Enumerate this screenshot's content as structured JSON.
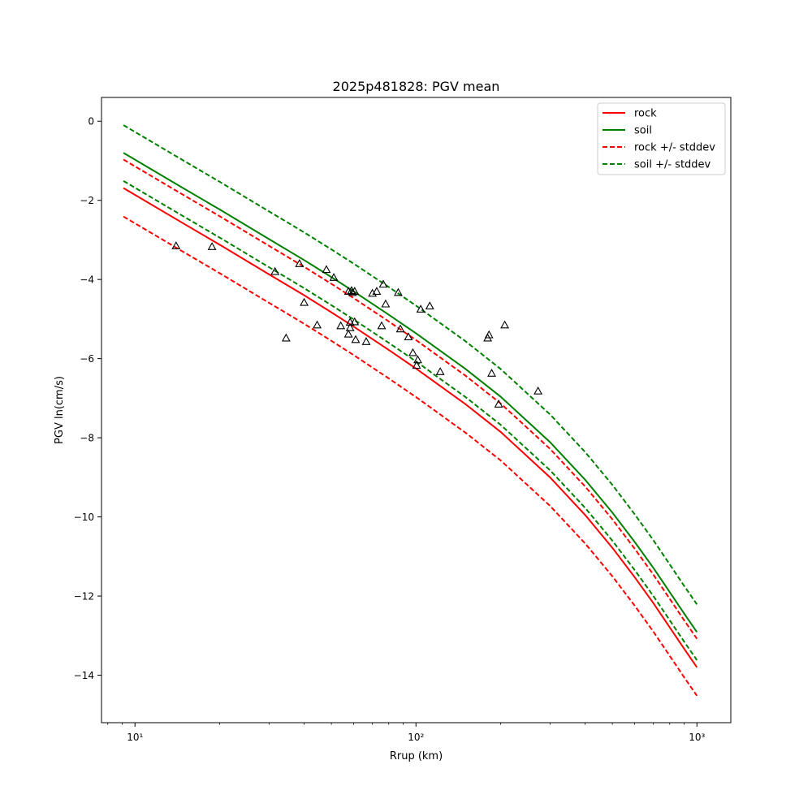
{
  "chart_data": {
    "type": "line",
    "title": "2025p481828: PGV mean",
    "xlabel": "Rrup (km)",
    "ylabel": "PGV ln(cm/s)",
    "x_scale": "log",
    "xlim": [
      7.6,
      1320
    ],
    "ylim": [
      -15.2,
      0.6
    ],
    "x_ticks": [
      {
        "value": 10,
        "label": "10¹"
      },
      {
        "value": 100,
        "label": "10²"
      },
      {
        "value": 1000,
        "label": "10³"
      }
    ],
    "y_ticks": [
      0,
      -2,
      -4,
      -6,
      -8,
      -10,
      -12,
      -14
    ],
    "grid": false,
    "legend_position": "top-right",
    "legend": [
      "rock",
      "soil",
      "rock +/- stddev",
      "soil +/- stddev"
    ],
    "colors": {
      "rock": "#ff0000",
      "soil": "#008000",
      "markers": "#000000"
    },
    "x": [
      9.1,
      15,
      20,
      30,
      40,
      50,
      60,
      80,
      100,
      150,
      200,
      300,
      400,
      500,
      600,
      700,
      800,
      900,
      1000
    ],
    "series": [
      {
        "name": "rock",
        "style": "solid",
        "color": "#ff0000",
        "values": [
          -1.69,
          -2.6,
          -3.12,
          -3.87,
          -4.4,
          -4.83,
          -5.19,
          -5.78,
          -6.25,
          -7.15,
          -7.85,
          -9.0,
          -9.95,
          -10.78,
          -11.52,
          -12.18,
          -12.79,
          -13.33,
          -13.8
        ]
      },
      {
        "name": "rock + stddev",
        "legend_label": "rock +/- stddev",
        "style": "dashed",
        "color": "#ff0000",
        "values": [
          -0.97,
          -1.88,
          -2.4,
          -3.15,
          -3.68,
          -4.11,
          -4.47,
          -5.06,
          -5.53,
          -6.43,
          -7.13,
          -8.28,
          -9.23,
          -10.06,
          -10.8,
          -11.46,
          -12.07,
          -12.61,
          -13.08
        ]
      },
      {
        "name": "rock - stddev",
        "style": "dashed",
        "color": "#ff0000",
        "values": [
          -2.41,
          -3.32,
          -3.84,
          -4.59,
          -5.12,
          -5.55,
          -5.91,
          -6.5,
          -6.97,
          -7.87,
          -8.57,
          -9.72,
          -10.67,
          -11.5,
          -12.24,
          -12.9,
          -13.51,
          -14.05,
          -14.52
        ]
      },
      {
        "name": "soil",
        "style": "solid",
        "color": "#008000",
        "values": [
          -0.8,
          -1.71,
          -2.23,
          -2.98,
          -3.51,
          -3.94,
          -4.3,
          -4.89,
          -5.36,
          -6.26,
          -6.96,
          -8.11,
          -9.06,
          -9.89,
          -10.63,
          -11.29,
          -11.9,
          -12.44,
          -12.91
        ]
      },
      {
        "name": "soil + stddev",
        "legend_label": "soil +/- stddev",
        "style": "dashed",
        "color": "#008000",
        "values": [
          -0.1,
          -1.01,
          -1.53,
          -2.28,
          -2.81,
          -3.24,
          -3.6,
          -4.19,
          -4.66,
          -5.56,
          -6.26,
          -7.41,
          -8.36,
          -9.19,
          -9.93,
          -10.59,
          -11.2,
          -11.74,
          -12.21
        ]
      },
      {
        "name": "soil - stddev",
        "style": "dashed",
        "color": "#008000",
        "values": [
          -1.51,
          -2.42,
          -2.94,
          -3.69,
          -4.22,
          -4.65,
          -5.01,
          -5.6,
          -6.07,
          -6.97,
          -7.67,
          -8.82,
          -9.77,
          -10.6,
          -11.34,
          -12.0,
          -12.61,
          -13.15,
          -13.62
        ]
      }
    ],
    "observations": [
      {
        "x": 14.0,
        "y": -3.15
      },
      {
        "x": 18.8,
        "y": -3.17
      },
      {
        "x": 31.5,
        "y": -3.8
      },
      {
        "x": 34.5,
        "y": -5.48
      },
      {
        "x": 38.5,
        "y": -3.6
      },
      {
        "x": 40.0,
        "y": -4.58
      },
      {
        "x": 44.5,
        "y": -5.15
      },
      {
        "x": 48.0,
        "y": -3.75
      },
      {
        "x": 51.0,
        "y": -3.95
      },
      {
        "x": 54.0,
        "y": -5.17
      },
      {
        "x": 57.5,
        "y": -4.3
      },
      {
        "x": 57.5,
        "y": -5.38
      },
      {
        "x": 58.3,
        "y": -5.08
      },
      {
        "x": 58.3,
        "y": -5.22
      },
      {
        "x": 59.0,
        "y": -4.28
      },
      {
        "x": 59.5,
        "y": -4.33
      },
      {
        "x": 60.5,
        "y": -4.3
      },
      {
        "x": 60.5,
        "y": -5.07
      },
      {
        "x": 61.0,
        "y": -5.52
      },
      {
        "x": 66.5,
        "y": -5.57
      },
      {
        "x": 70.0,
        "y": -4.35
      },
      {
        "x": 72.5,
        "y": -4.3
      },
      {
        "x": 75.5,
        "y": -5.17
      },
      {
        "x": 76.5,
        "y": -4.12
      },
      {
        "x": 78.0,
        "y": -4.62
      },
      {
        "x": 86.5,
        "y": -4.33
      },
      {
        "x": 88.0,
        "y": -5.25
      },
      {
        "x": 94.0,
        "y": -5.45
      },
      {
        "x": 97.5,
        "y": -5.85
      },
      {
        "x": 100.5,
        "y": -6.17
      },
      {
        "x": 101.5,
        "y": -6.03
      },
      {
        "x": 104.0,
        "y": -4.75
      },
      {
        "x": 112.0,
        "y": -4.67
      },
      {
        "x": 122.0,
        "y": -6.33
      },
      {
        "x": 180.0,
        "y": -5.48
      },
      {
        "x": 182.0,
        "y": -5.4
      },
      {
        "x": 186.0,
        "y": -6.37
      },
      {
        "x": 197.0,
        "y": -7.15
      },
      {
        "x": 207.0,
        "y": -5.15
      },
      {
        "x": 272.0,
        "y": -6.82
      }
    ]
  }
}
